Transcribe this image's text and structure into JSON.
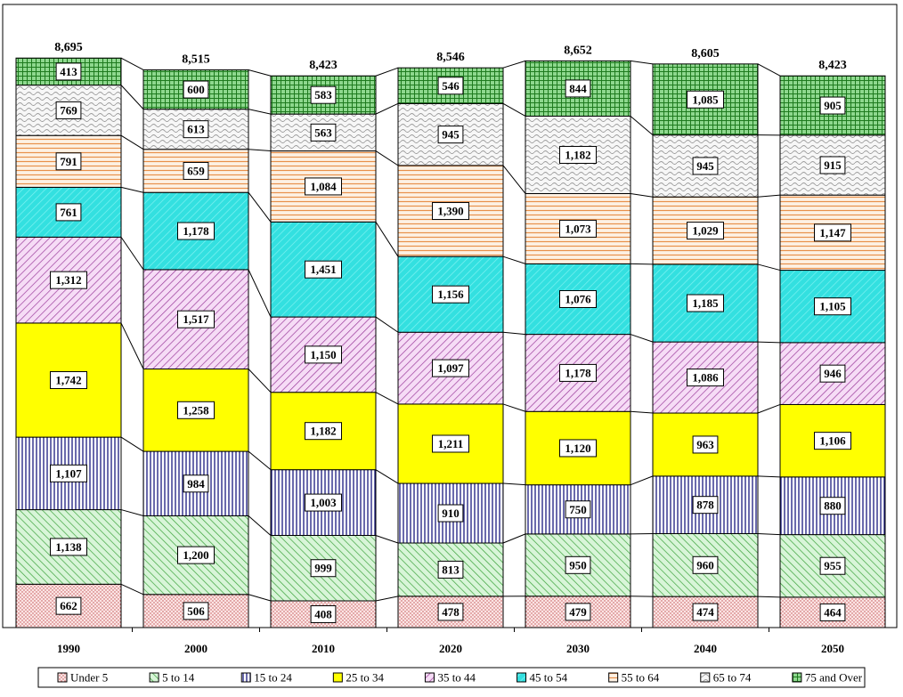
{
  "chart_data": {
    "type": "bar",
    "stacked": true,
    "categories": [
      "1990",
      "2000",
      "2010",
      "2020",
      "2030",
      "2040",
      "2050"
    ],
    "totals": [
      "8,695",
      "8,515",
      "8,423",
      "8,546",
      "8,652",
      "8,605",
      "8,423"
    ],
    "series": [
      {
        "name": "Under 5",
        "color": "#f4cccc",
        "pattern": "dots",
        "values": [
          662,
          506,
          408,
          478,
          479,
          474,
          464
        ],
        "labels": [
          "662",
          "506",
          "408",
          "478",
          "479",
          "474",
          "464"
        ]
      },
      {
        "name": "5 to 14",
        "color": "#ccf0cc",
        "pattern": "diag-green",
        "values": [
          1138,
          1200,
          999,
          813,
          950,
          960,
          955
        ],
        "labels": [
          "1,138",
          "1,200",
          "999",
          "813",
          "950",
          "960",
          "955"
        ]
      },
      {
        "name": "15 to 24",
        "color": "#ffffff",
        "pattern": "vlines-navy",
        "values": [
          1107,
          984,
          1003,
          910,
          750,
          878,
          880
        ],
        "labels": [
          "1,107",
          "984",
          "1,003",
          "910",
          "750",
          "878",
          "880"
        ]
      },
      {
        "name": "25 to 34",
        "color": "#ffff00",
        "pattern": "solid",
        "values": [
          1742,
          1258,
          1182,
          1211,
          1120,
          963,
          1106
        ],
        "labels": [
          "1,742",
          "1,258",
          "1,182",
          "1,211",
          "1,120",
          "963",
          "1,106"
        ]
      },
      {
        "name": "35 to 44",
        "color": "#f2ccf2",
        "pattern": "diag-purple",
        "values": [
          1312,
          1517,
          1150,
          1097,
          1178,
          1086,
          946
        ],
        "labels": [
          "1,312",
          "1,517",
          "1,150",
          "1,097",
          "1,178",
          "1,086",
          "946"
        ]
      },
      {
        "name": "45 to 54",
        "color": "#33dede",
        "pattern": "diag-cyan",
        "values": [
          761,
          1178,
          1451,
          1156,
          1076,
          1185,
          1105
        ],
        "labels": [
          "761",
          "1,178",
          "1,451",
          "1,156",
          "1,076",
          "1,185",
          "1,105"
        ]
      },
      {
        "name": "55 to 64",
        "color": "#fde8d4",
        "pattern": "hlines-orange",
        "values": [
          791,
          659,
          1084,
          1390,
          1073,
          1029,
          1147
        ],
        "labels": [
          "791",
          "659",
          "1,084",
          "1,390",
          "1,073",
          "1,029",
          "1,147"
        ]
      },
      {
        "name": "65 to 74",
        "color": "#f2f2f2",
        "pattern": "waves",
        "values": [
          769,
          613,
          563,
          945,
          1182,
          945,
          915
        ],
        "labels": [
          "769",
          "613",
          "563",
          "945",
          "1,182",
          "945",
          "915"
        ]
      },
      {
        "name": "75 and Over",
        "color": "#66cc66",
        "pattern": "grid-green",
        "values": [
          413,
          600,
          583,
          546,
          844,
          1085,
          905
        ],
        "labels": [
          "413",
          "600",
          "583",
          "546",
          "844",
          "1,085",
          "905"
        ]
      }
    ],
    "ylim": [
      0,
      9300
    ],
    "grid": false,
    "legend_position": "bottom"
  }
}
